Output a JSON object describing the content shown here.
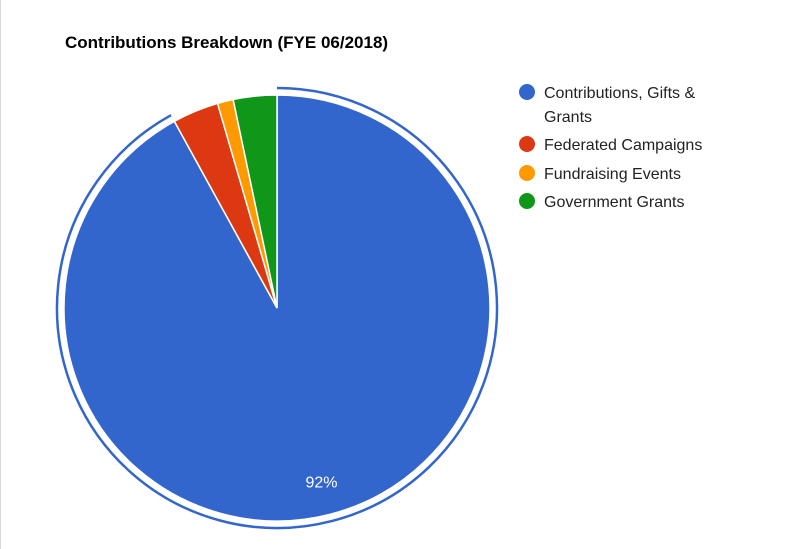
{
  "chart_data": {
    "type": "pie",
    "title": "Contributions Breakdown (FYE 06/2018)",
    "slices": [
      {
        "label": "Contributions, Gifts & Grants",
        "label_lines": [
          "Contributions, Gifts &",
          "Grants"
        ],
        "value": 92,
        "color": "#3366cc",
        "data_label": "92%"
      },
      {
        "label": "Federated Campaigns",
        "label_lines": [
          "Federated Campaigns"
        ],
        "value": 3.5,
        "color": "#dc3912",
        "data_label": ""
      },
      {
        "label": "Fundraising Events",
        "label_lines": [
          "Fundraising Events"
        ],
        "value": 1.2,
        "color": "#ff9900",
        "data_label": ""
      },
      {
        "label": "Government Grants",
        "label_lines": [
          "Government Grants"
        ],
        "value": 3.3,
        "color": "#109618",
        "data_label": ""
      }
    ],
    "legend_position": "right",
    "highlighted_slice": "Contributions, Gifts & Grants"
  }
}
